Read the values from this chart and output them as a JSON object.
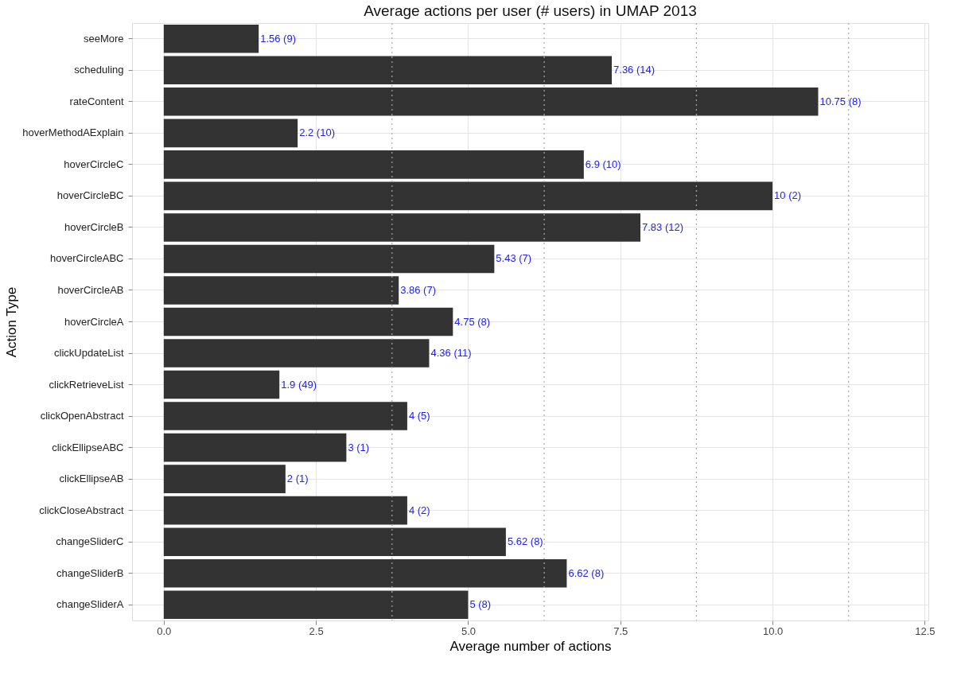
{
  "chart_data": {
    "type": "bar",
    "orientation": "horizontal",
    "title": "Average actions per user (# users) in UMAP 2013",
    "xlabel": "Average number of actions",
    "ylabel": "Action Type",
    "categories": [
      "seeMore",
      "scheduling",
      "rateContent",
      "hoverMethodAExplain",
      "hoverCircleC",
      "hoverCircleBC",
      "hoverCircleB",
      "hoverCircleABC",
      "hoverCircleAB",
      "hoverCircleA",
      "clickUpdateList",
      "clickRetrieveList",
      "clickOpenAbstract",
      "clickEllipseABC",
      "clickEllipseAB",
      "clickCloseAbstract",
      "changeSliderC",
      "changeSliderB",
      "changeSliderA"
    ],
    "values": [
      1.56,
      7.36,
      10.75,
      2.2,
      6.9,
      10,
      7.83,
      5.43,
      3.86,
      4.75,
      4.36,
      1.9,
      4,
      3,
      2,
      4,
      5.62,
      6.62,
      5
    ],
    "value_labels": [
      "1.56 (9)",
      "7.36 (14)",
      "10.75 (8)",
      "2.2 (10)",
      "6.9 (10)",
      "10 (2)",
      "7.83 (12)",
      "5.43 (7)",
      "3.86 (7)",
      "4.75 (8)",
      "4.36 (11)",
      "1.9 (49)",
      "4 (5)",
      "3 (1)",
      "2 (1)",
      "4 (2)",
      "5.62 (8)",
      "6.62 (8)",
      "5 (8)"
    ],
    "color": "#333333",
    "xlim": [
      -0.52,
      12.56
    ],
    "xticks": [
      {
        "value": 0,
        "label": "0.0"
      },
      {
        "value": 2.5,
        "label": "2.5"
      },
      {
        "value": 5,
        "label": "5.0"
      },
      {
        "value": 7.5,
        "label": "7.5"
      },
      {
        "value": 10,
        "label": "10.0"
      },
      {
        "value": 12.5,
        "label": "12.5"
      }
    ],
    "ref_lines": [
      {
        "axis": "x",
        "value": 3.75,
        "color": "#aaaaaa",
        "line_style": "dotted"
      },
      {
        "axis": "x",
        "value": 6.25,
        "color": "#aaaaaa",
        "line_style": "dotted"
      },
      {
        "axis": "x",
        "value": 8.75,
        "color": "#aaaaaa",
        "line_style": "dotted"
      },
      {
        "axis": "x",
        "value": 11.25,
        "color": "#aaaaaa",
        "line_style": "dotted"
      }
    ],
    "grid": true
  }
}
